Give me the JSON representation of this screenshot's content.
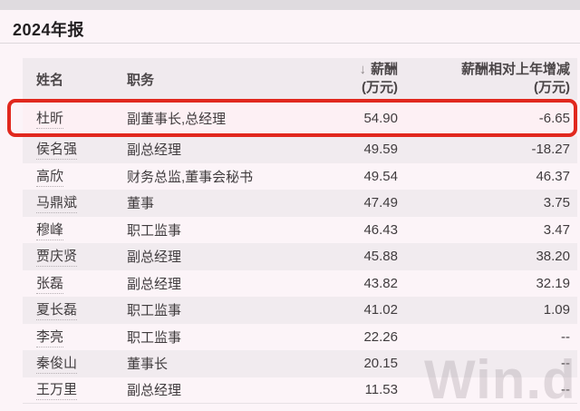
{
  "title": "2024年报",
  "watermark": "Win.d",
  "colors": {
    "highlight_border": "#e1281e",
    "highlight_row_bg": "#fdf0f4",
    "header_bg": "#f0eaee",
    "zebra_row_bg": "#f1ebef",
    "page_bg": "#fcf4f8"
  },
  "table": {
    "sort_icon": "↓",
    "columns": {
      "name": "姓名",
      "position": "职务",
      "salary_line1": "薪酬",
      "salary_line2": "(万元)",
      "change_line1": "薪酬相对上年增减",
      "change_line2": "(万元)"
    },
    "rows": [
      {
        "name": "杜昕",
        "position": "副董事长,总经理",
        "salary": "54.90",
        "change": "-6.65",
        "highlighted": true
      },
      {
        "name": "侯名强",
        "position": "副总经理",
        "salary": "49.59",
        "change": "-18.27",
        "highlighted": false
      },
      {
        "name": "高欣",
        "position": "财务总监,董事会秘书",
        "salary": "49.54",
        "change": "46.37",
        "highlighted": false
      },
      {
        "name": "马鼎斌",
        "position": "董事",
        "salary": "47.49",
        "change": "3.75",
        "highlighted": false
      },
      {
        "name": "穆峰",
        "position": "职工监事",
        "salary": "46.43",
        "change": "3.47",
        "highlighted": false
      },
      {
        "name": "贾庆贤",
        "position": "副总经理",
        "salary": "45.88",
        "change": "38.20",
        "highlighted": false
      },
      {
        "name": "张磊",
        "position": "副总经理",
        "salary": "43.82",
        "change": "32.19",
        "highlighted": false
      },
      {
        "name": "夏长磊",
        "position": "职工监事",
        "salary": "41.02",
        "change": "1.09",
        "highlighted": false
      },
      {
        "name": "李亮",
        "position": "职工监事",
        "salary": "22.26",
        "change": "--",
        "highlighted": false
      },
      {
        "name": "秦俊山",
        "position": "董事长",
        "salary": "20.15",
        "change": "--",
        "highlighted": false
      },
      {
        "name": "王万里",
        "position": "副总经理",
        "salary": "11.53",
        "change": "--",
        "highlighted": false
      }
    ]
  }
}
